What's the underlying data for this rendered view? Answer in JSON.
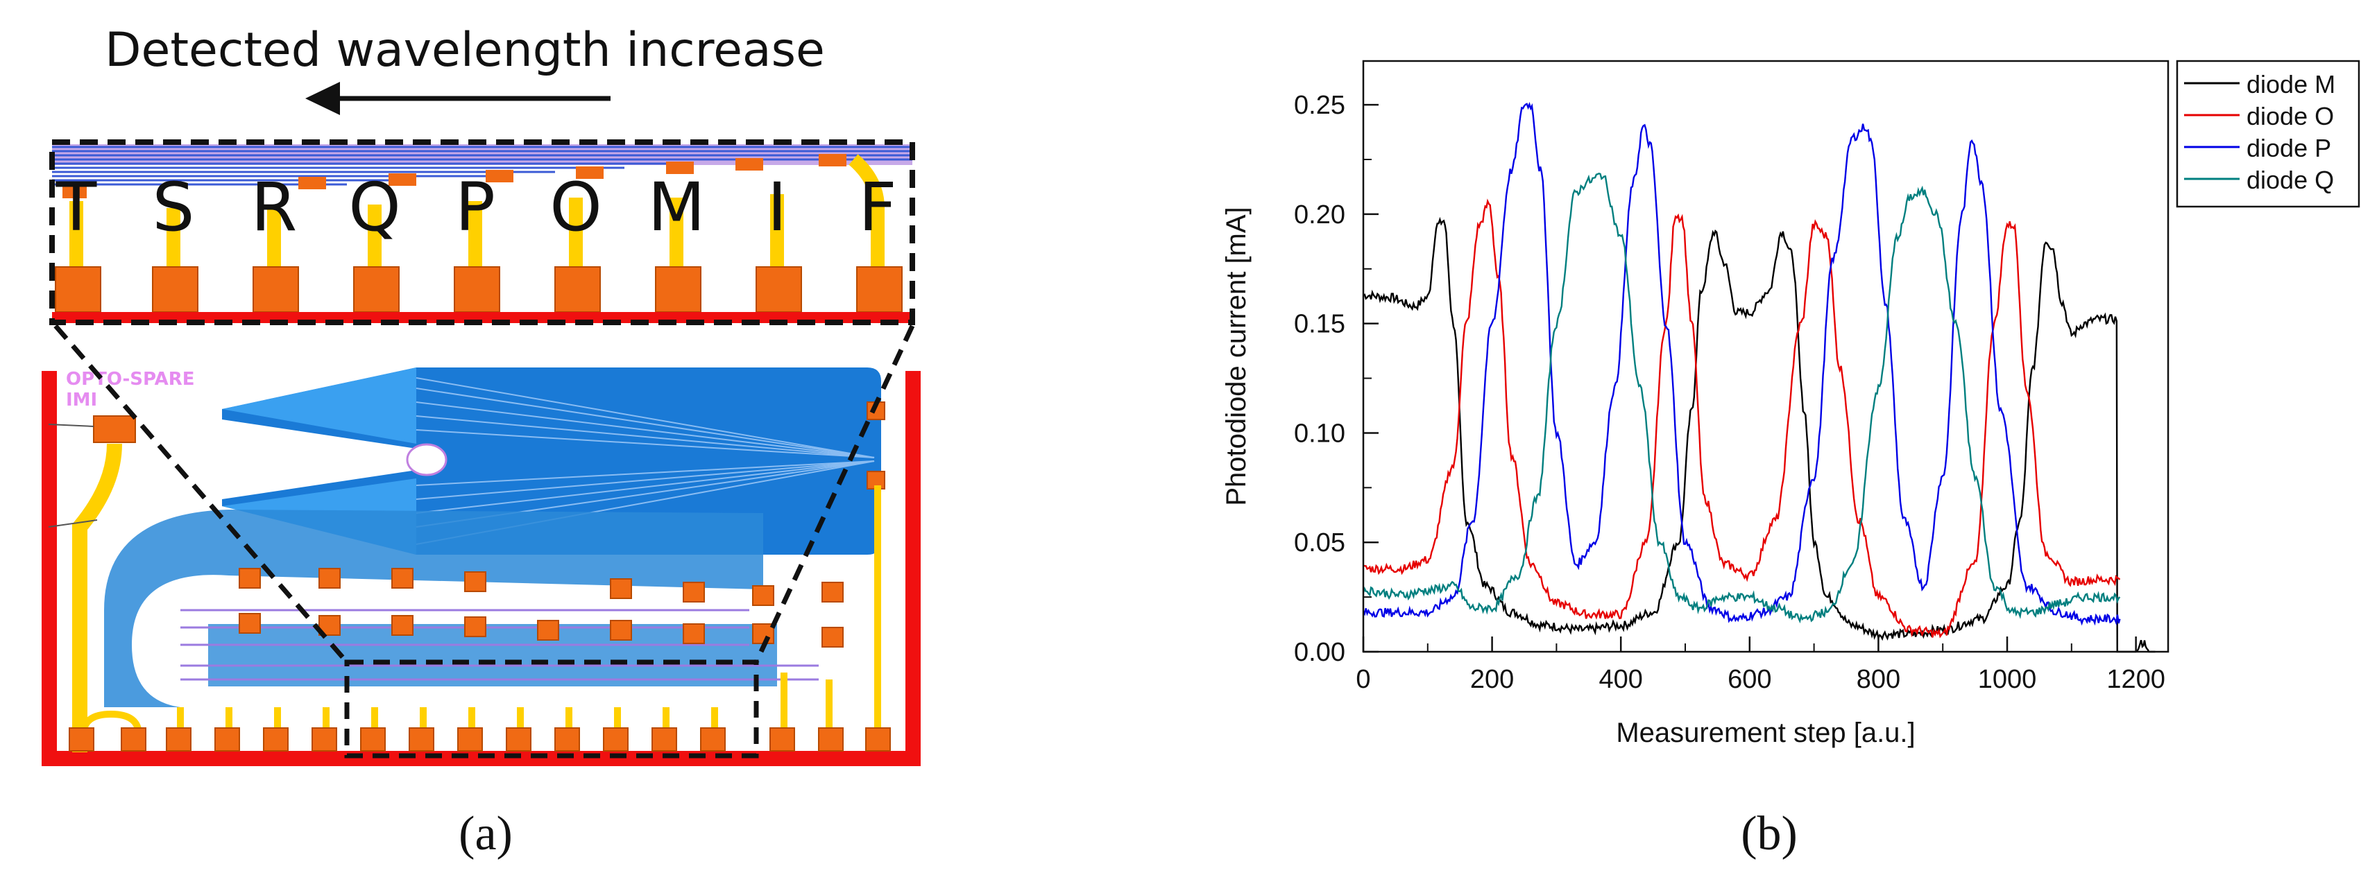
{
  "panel_a": {
    "header": "Detected wavelength increase",
    "diode_letters": [
      "T",
      "S",
      "R",
      "Q",
      "P",
      "O",
      "M",
      "I",
      "F"
    ],
    "chip_label_line1": "OPTO-SPARE",
    "chip_label_line2": "IMI",
    "caption": "(a)"
  },
  "panel_b": {
    "caption": "(b)"
  },
  "chart_data": {
    "type": "line",
    "title": "",
    "xlabel": "Measurement step [a.u.]",
    "ylabel": "Photodiode current [mA]",
    "xlim": [
      0,
      1250
    ],
    "ylim": [
      0,
      0.27
    ],
    "xticks": [
      0,
      200,
      400,
      600,
      800,
      1000,
      1200
    ],
    "yticks": [
      0.0,
      0.05,
      0.1,
      0.15,
      0.2,
      0.25
    ],
    "xtick_labels": [
      "0",
      "200",
      "400",
      "600",
      "800",
      "1000",
      "1200"
    ],
    "ytick_labels": [
      "0.00",
      "0.05",
      "0.10",
      "0.15",
      "0.20",
      "0.25"
    ],
    "legend_position": "top-right outside",
    "series": [
      {
        "name": "diode M",
        "color": "#000000",
        "x": [
          0,
          40,
          80,
          100,
          115,
          125,
          140,
          160,
          190,
          230,
          280,
          340,
          400,
          450,
          490,
          510,
          525,
          545,
          560,
          580,
          600,
          630,
          650,
          665,
          685,
          700,
          720,
          760,
          800,
          850,
          900,
          960,
          1000,
          1020,
          1040,
          1060,
          1070,
          1085,
          1100,
          1120,
          1140,
          1160,
          1170,
          1171,
          1180,
          1200,
          1210,
          1215,
          1220,
          1230
        ],
        "values": [
          0.163,
          0.162,
          0.158,
          0.162,
          0.195,
          0.197,
          0.15,
          0.06,
          0.03,
          0.018,
          0.012,
          0.01,
          0.012,
          0.018,
          0.05,
          0.11,
          0.165,
          0.192,
          0.178,
          0.155,
          0.155,
          0.165,
          0.192,
          0.182,
          0.11,
          0.05,
          0.025,
          0.012,
          0.008,
          0.008,
          0.01,
          0.015,
          0.03,
          0.06,
          0.13,
          0.188,
          0.185,
          0.16,
          0.145,
          0.15,
          0.152,
          0.152,
          0.152,
          0.0,
          0.0,
          0.0,
          0.004,
          0.004,
          0.0,
          0.0
        ]
      },
      {
        "name": "diode O",
        "color": "#e60000",
        "x": [
          0,
          60,
          100,
          140,
          160,
          180,
          195,
          210,
          230,
          260,
          300,
          350,
          400,
          440,
          470,
          485,
          495,
          510,
          530,
          560,
          600,
          640,
          680,
          700,
          720,
          740,
          770,
          800,
          850,
          900,
          950,
          980,
          1000,
          1010,
          1030,
          1060,
          1100,
          1140,
          1175
        ],
        "values": [
          0.038,
          0.038,
          0.042,
          0.085,
          0.15,
          0.195,
          0.205,
          0.17,
          0.09,
          0.04,
          0.022,
          0.017,
          0.017,
          0.05,
          0.15,
          0.2,
          0.198,
          0.15,
          0.07,
          0.04,
          0.035,
          0.06,
          0.15,
          0.195,
          0.19,
          0.13,
          0.06,
          0.025,
          0.01,
          0.008,
          0.04,
          0.15,
          0.195,
          0.195,
          0.12,
          0.045,
          0.032,
          0.033,
          0.033
        ]
      },
      {
        "name": "diode P",
        "color": "#0000e6",
        "x": [
          0,
          60,
          100,
          140,
          170,
          200,
          230,
          250,
          260,
          275,
          300,
          330,
          360,
          390,
          420,
          435,
          445,
          470,
          500,
          540,
          580,
          620,
          660,
          700,
          730,
          760,
          780,
          790,
          810,
          840,
          870,
          900,
          930,
          945,
          960,
          990,
          1030,
          1080,
          1120,
          1160,
          1175
        ],
        "values": [
          0.018,
          0.018,
          0.018,
          0.025,
          0.06,
          0.15,
          0.22,
          0.25,
          0.25,
          0.22,
          0.1,
          0.04,
          0.05,
          0.12,
          0.215,
          0.24,
          0.232,
          0.15,
          0.05,
          0.02,
          0.015,
          0.018,
          0.025,
          0.08,
          0.18,
          0.235,
          0.24,
          0.232,
          0.16,
          0.06,
          0.03,
          0.08,
          0.2,
          0.235,
          0.215,
          0.11,
          0.03,
          0.018,
          0.015,
          0.015,
          0.015
        ]
      },
      {
        "name": "diode Q",
        "color": "#007f7f",
        "x": [
          0,
          60,
          100,
          140,
          170,
          200,
          240,
          270,
          300,
          330,
          350,
          370,
          400,
          430,
          460,
          490,
          520,
          560,
          600,
          640,
          680,
          720,
          760,
          800,
          830,
          850,
          870,
          890,
          920,
          950,
          980,
          1010,
          1040,
          1080,
          1120,
          1175
        ],
        "values": [
          0.028,
          0.026,
          0.028,
          0.03,
          0.02,
          0.02,
          0.035,
          0.07,
          0.15,
          0.21,
          0.215,
          0.218,
          0.19,
          0.12,
          0.05,
          0.025,
          0.02,
          0.025,
          0.025,
          0.02,
          0.015,
          0.018,
          0.04,
          0.12,
          0.19,
          0.208,
          0.21,
          0.2,
          0.15,
          0.08,
          0.03,
          0.018,
          0.018,
          0.022,
          0.025,
          0.025
        ]
      }
    ]
  }
}
